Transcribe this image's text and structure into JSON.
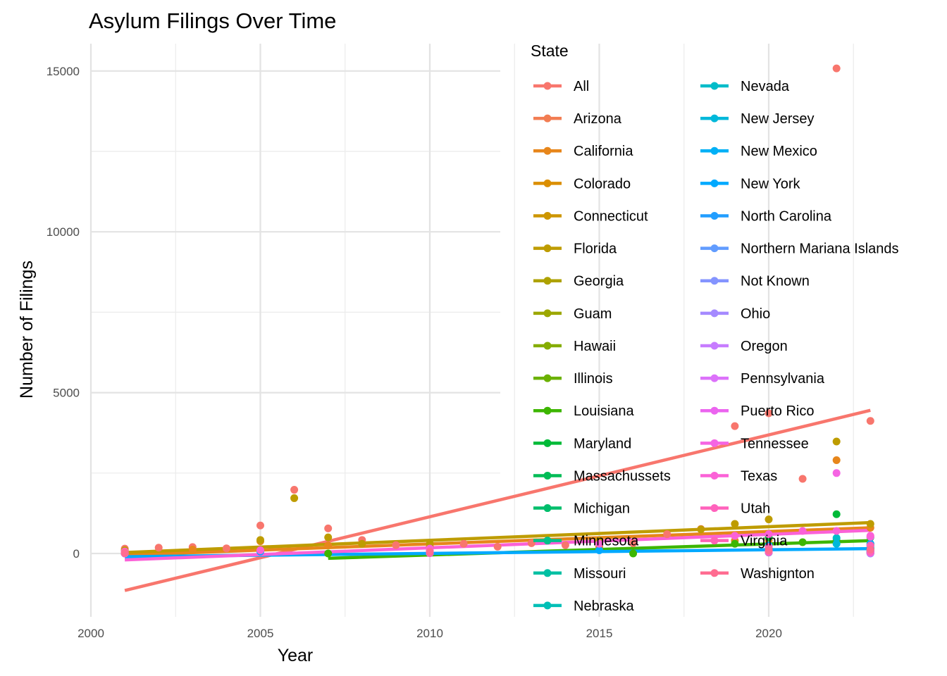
{
  "chart_data": {
    "type": "scatter",
    "title": "Asylum Filings Over Time",
    "xlabel": "Year",
    "ylabel": "Number of Filings",
    "xlim": [
      2000,
      2024
    ],
    "ylim": [
      -1900,
      15900
    ],
    "x_ticks": [
      "2000",
      "2005",
      "2010",
      "2015",
      "2020"
    ],
    "y_ticks": [
      "0",
      "5000",
      "10000",
      "15000"
    ],
    "grid": true,
    "legend_title": "State",
    "legend_position": "right",
    "series": [
      {
        "name": "All",
        "color": "#F8766D",
        "points": [
          [
            2001,
            150
          ],
          [
            2002,
            180
          ],
          [
            2003,
            200
          ],
          [
            2004,
            160
          ],
          [
            2005,
            870
          ],
          [
            2006,
            1980
          ],
          [
            2007,
            780
          ],
          [
            2008,
            420
          ],
          [
            2009,
            260
          ],
          [
            2010,
            230
          ],
          [
            2011,
            300
          ],
          [
            2012,
            210
          ],
          [
            2013,
            320
          ],
          [
            2014,
            260
          ],
          [
            2015,
            300
          ],
          [
            2016,
            320
          ],
          [
            2017,
            600
          ],
          [
            2018,
            760
          ],
          [
            2019,
            3960
          ],
          [
            2020,
            4360
          ],
          [
            2021,
            2320
          ],
          [
            2022,
            15080
          ],
          [
            2023,
            4120
          ]
        ],
        "trend": [
          [
            2001,
            -1150
          ],
          [
            2023,
            4450
          ]
        ]
      },
      {
        "name": "Arizona",
        "color": "#F27D52",
        "points": [
          [
            2001,
            20
          ],
          [
            2010,
            30
          ],
          [
            2020,
            60
          ],
          [
            2023,
            80
          ]
        ]
      },
      {
        "name": "California",
        "color": "#E7861B",
        "points": [
          [
            2001,
            80
          ],
          [
            2003,
            120
          ],
          [
            2005,
            380
          ],
          [
            2007,
            250
          ],
          [
            2010,
            180
          ],
          [
            2015,
            200
          ],
          [
            2019,
            400
          ],
          [
            2020,
            420
          ],
          [
            2022,
            2900
          ],
          [
            2023,
            800
          ]
        ],
        "trend": [
          [
            2001,
            -50
          ],
          [
            2023,
            800
          ]
        ]
      },
      {
        "name": "Colorado",
        "color": "#DB8E00",
        "points": [
          [
            2001,
            10
          ],
          [
            2010,
            20
          ],
          [
            2020,
            40
          ],
          [
            2023,
            60
          ]
        ]
      },
      {
        "name": "Connecticut",
        "color": "#CD9600",
        "points": [
          [
            2001,
            10
          ],
          [
            2010,
            20
          ],
          [
            2020,
            30
          ],
          [
            2023,
            40
          ]
        ]
      },
      {
        "name": "Florida",
        "color": "#BE9C00",
        "points": [
          [
            2001,
            100
          ],
          [
            2005,
            420
          ],
          [
            2006,
            1720
          ],
          [
            2007,
            500
          ],
          [
            2008,
            300
          ],
          [
            2010,
            300
          ],
          [
            2015,
            400
          ],
          [
            2018,
            750
          ],
          [
            2019,
            920
          ],
          [
            2020,
            1060
          ],
          [
            2022,
            3480
          ],
          [
            2023,
            920
          ]
        ],
        "trend": [
          [
            2001,
            30
          ],
          [
            2023,
            960
          ]
        ]
      },
      {
        "name": "Georgia",
        "color": "#AEA200",
        "points": [
          [
            2001,
            20
          ],
          [
            2010,
            40
          ],
          [
            2020,
            100
          ],
          [
            2023,
            150
          ]
        ]
      },
      {
        "name": "Guam",
        "color": "#9CA700",
        "points": [
          [
            2001,
            0
          ],
          [
            2023,
            10
          ]
        ]
      },
      {
        "name": "Hawaii",
        "color": "#85AD00",
        "points": [
          [
            2001,
            0
          ],
          [
            2023,
            20
          ]
        ]
      },
      {
        "name": "Illinois",
        "color": "#6BB100",
        "points": [
          [
            2001,
            30
          ],
          [
            2010,
            60
          ],
          [
            2020,
            200
          ],
          [
            2023,
            250
          ]
        ]
      },
      {
        "name": "Louisiana",
        "color": "#3DB600",
        "points": [
          [
            2007,
            0
          ],
          [
            2010,
            50
          ],
          [
            2016,
            0
          ],
          [
            2019,
            300
          ],
          [
            2021,
            350
          ],
          [
            2022,
            400
          ],
          [
            2023,
            300
          ]
        ],
        "trend": [
          [
            2007,
            -150
          ],
          [
            2023,
            400
          ]
        ]
      },
      {
        "name": "Maryland",
        "color": "#00BA38",
        "points": [
          [
            2001,
            20
          ],
          [
            2010,
            60
          ],
          [
            2020,
            500
          ],
          [
            2022,
            1220
          ],
          [
            2023,
            500
          ]
        ]
      },
      {
        "name": "Massachussets",
        "color": "#00BC56",
        "points": [
          [
            2001,
            20
          ],
          [
            2010,
            40
          ],
          [
            2020,
            120
          ],
          [
            2023,
            150
          ]
        ]
      },
      {
        "name": "Michigan",
        "color": "#00BE6C",
        "points": [
          [
            2001,
            10
          ],
          [
            2010,
            30
          ],
          [
            2020,
            80
          ],
          [
            2023,
            90
          ]
        ]
      },
      {
        "name": "Minnesota",
        "color": "#00C08B",
        "points": [
          [
            2001,
            10
          ],
          [
            2010,
            30
          ],
          [
            2020,
            100
          ],
          [
            2023,
            110
          ]
        ]
      },
      {
        "name": "Missouri",
        "color": "#00C0A3",
        "points": [
          [
            2001,
            5
          ],
          [
            2010,
            20
          ],
          [
            2020,
            50
          ],
          [
            2023,
            60
          ]
        ]
      },
      {
        "name": "Nebraska",
        "color": "#00BFB6",
        "points": [
          [
            2001,
            5
          ],
          [
            2010,
            10
          ],
          [
            2020,
            30
          ],
          [
            2023,
            30
          ]
        ]
      },
      {
        "name": "Nevada",
        "color": "#00BCC9",
        "points": [
          [
            2001,
            5
          ],
          [
            2010,
            10
          ],
          [
            2020,
            40
          ],
          [
            2022,
            480
          ],
          [
            2023,
            50
          ]
        ]
      },
      {
        "name": "New Jersey",
        "color": "#00B8DA",
        "points": [
          [
            2001,
            20
          ],
          [
            2010,
            40
          ],
          [
            2020,
            200
          ],
          [
            2022,
            300
          ],
          [
            2023,
            200
          ]
        ]
      },
      {
        "name": "New Mexico",
        "color": "#00B0F6",
        "points": [
          [
            2001,
            5
          ],
          [
            2010,
            10
          ],
          [
            2020,
            30
          ],
          [
            2023,
            30
          ]
        ]
      },
      {
        "name": "New York",
        "color": "#00A9FF",
        "points": [
          [
            2001,
            50
          ],
          [
            2005,
            60
          ],
          [
            2010,
            80
          ],
          [
            2015,
            100
          ],
          [
            2020,
            250
          ],
          [
            2023,
            300
          ]
        ],
        "trend": [
          [
            2001,
            -100
          ],
          [
            2023,
            150
          ]
        ]
      },
      {
        "name": "North Carolina",
        "color": "#229EFF",
        "points": [
          [
            2001,
            10
          ],
          [
            2010,
            20
          ],
          [
            2020,
            60
          ],
          [
            2023,
            60
          ]
        ]
      },
      {
        "name": "Northern Mariana Islands",
        "color": "#619CFF",
        "points": [
          [
            2001,
            0
          ],
          [
            2023,
            0
          ]
        ]
      },
      {
        "name": "Not Known",
        "color": "#8494FF",
        "points": [
          [
            2001,
            10
          ],
          [
            2010,
            10
          ],
          [
            2023,
            10
          ]
        ]
      },
      {
        "name": "Ohio",
        "color": "#A58AFF",
        "points": [
          [
            2001,
            10
          ],
          [
            2010,
            20
          ],
          [
            2020,
            60
          ],
          [
            2023,
            70
          ]
        ]
      },
      {
        "name": "Oregon",
        "color": "#C77CFF",
        "points": [
          [
            2001,
            5
          ],
          [
            2010,
            10
          ],
          [
            2020,
            30
          ],
          [
            2023,
            40
          ]
        ]
      },
      {
        "name": "Pennsylvania",
        "color": "#DC71FA",
        "points": [
          [
            2001,
            20
          ],
          [
            2010,
            30
          ],
          [
            2020,
            90
          ],
          [
            2023,
            100
          ]
        ]
      },
      {
        "name": "Puerto Rico",
        "color": "#EB64EF",
        "points": [
          [
            2001,
            0
          ],
          [
            2010,
            10
          ],
          [
            2023,
            10
          ]
        ]
      },
      {
        "name": "Tennessee",
        "color": "#F564E3",
        "points": [
          [
            2001,
            10
          ],
          [
            2010,
            20
          ],
          [
            2020,
            80
          ],
          [
            2022,
            2500
          ],
          [
            2023,
            520
          ]
        ]
      },
      {
        "name": "Texas",
        "color": "#FB61D7",
        "points": [
          [
            2001,
            60
          ],
          [
            2005,
            100
          ],
          [
            2010,
            150
          ],
          [
            2015,
            300
          ],
          [
            2019,
            550
          ],
          [
            2020,
            600
          ],
          [
            2021,
            700
          ],
          [
            2022,
            700
          ],
          [
            2023,
            550
          ]
        ],
        "trend": [
          [
            2001,
            -200
          ],
          [
            2023,
            720
          ]
        ]
      },
      {
        "name": "Utah",
        "color": "#FF62BC",
        "points": [
          [
            2001,
            5
          ],
          [
            2010,
            10
          ],
          [
            2020,
            40
          ],
          [
            2023,
            40
          ]
        ]
      },
      {
        "name": "Virginia",
        "color": "#FF63B6",
        "points": [
          [
            2001,
            40
          ],
          [
            2010,
            70
          ],
          [
            2020,
            200
          ],
          [
            2023,
            250
          ]
        ]
      },
      {
        "name": "Washignton",
        "color": "#FF6C91",
        "points": [
          [
            2001,
            20
          ],
          [
            2010,
            40
          ],
          [
            2020,
            100
          ],
          [
            2023,
            120
          ]
        ]
      }
    ]
  }
}
